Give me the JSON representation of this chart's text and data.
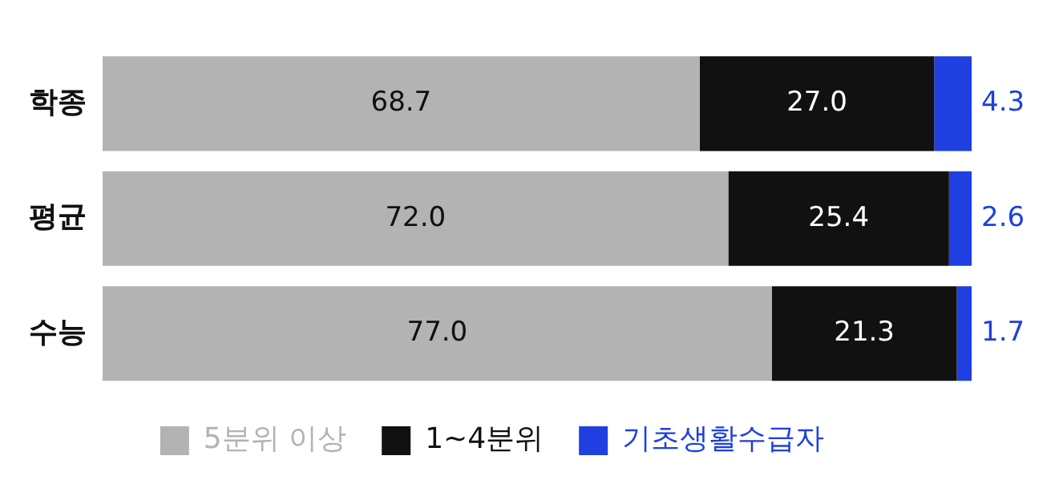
{
  "chart_data": {
    "type": "bar",
    "orientation": "horizontal",
    "stacked": true,
    "categories": [
      "학종",
      "평균",
      "수능"
    ],
    "series": [
      {
        "name": "5분위 이상",
        "color": "#b3b3b3",
        "values": [
          68.7,
          72.0,
          77.0
        ],
        "value_labels": [
          "68.7",
          "72.0",
          "77.0"
        ]
      },
      {
        "name": "1~4분위",
        "color": "#111111",
        "values": [
          27.0,
          25.4,
          21.3
        ],
        "value_labels": [
          "27.0",
          "25.4",
          "21.3"
        ]
      },
      {
        "name": "기초생활수급자",
        "color": "#1f3fe0",
        "values": [
          4.3,
          2.6,
          1.7
        ],
        "value_labels": [
          "4.3",
          "2.6",
          "1.7"
        ]
      }
    ],
    "legend": "bottom",
    "tick_labels": "y",
    "grid": false
  }
}
